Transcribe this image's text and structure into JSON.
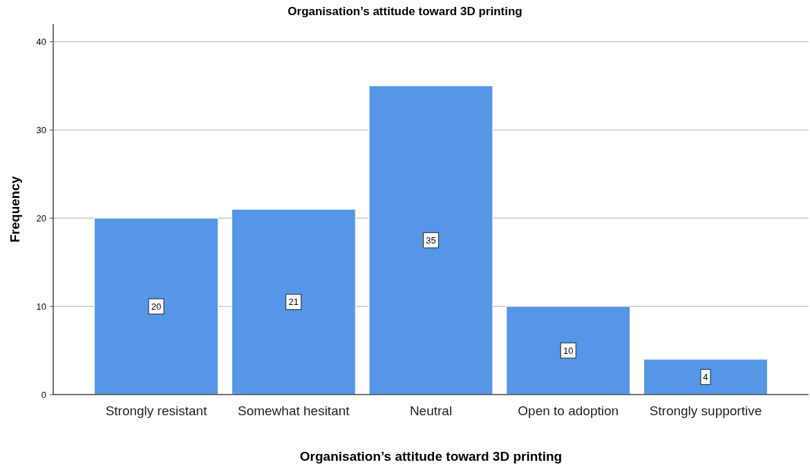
{
  "chart_data": {
    "type": "bar",
    "title": "Organisation’s attitude toward 3D printing",
    "xlabel": "Organisation’s attitude toward 3D printing",
    "ylabel": "Frequency",
    "categories": [
      "Strongly resistant",
      "Somewhat hesitant",
      "Neutral",
      "Open to adoption",
      "Strongly supportive"
    ],
    "values": [
      20,
      21,
      35,
      10,
      4
    ],
    "color": "#5596e6",
    "ylim": [
      0,
      42
    ],
    "yticks": [
      0,
      10,
      20,
      30,
      40
    ],
    "grid": "y",
    "data_labels": true
  }
}
